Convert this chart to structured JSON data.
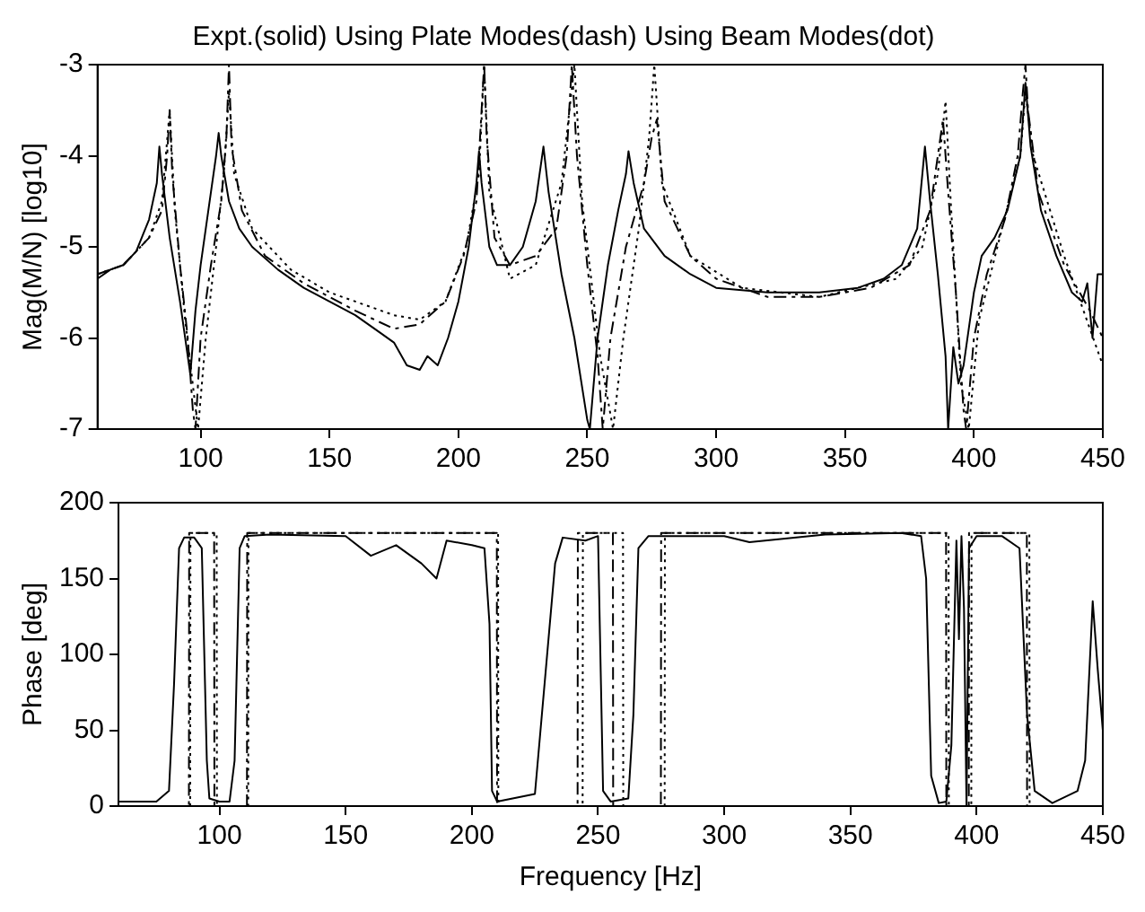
{
  "chart_data": [
    {
      "type": "line",
      "title": "Expt.(solid) Using Plate Modes(dash) Using Beam Modes(dot)",
      "ylabel": "Mag(M/N) [log10]",
      "xlim": [
        60,
        450
      ],
      "xticks": [
        100,
        150,
        200,
        250,
        300,
        350,
        400,
        450
      ],
      "ylim": [
        -7,
        -3
      ],
      "yticks": [
        -7,
        -6,
        -5,
        -4,
        -3
      ],
      "grid": false,
      "legend": false,
      "marker": "none",
      "series": [
        {
          "color": "#000000",
          "line_style": "solid",
          "x": [
            60,
            65,
            70,
            75,
            80,
            83,
            84,
            85,
            88,
            92,
            96,
            98,
            100,
            103,
            106,
            107,
            108,
            111,
            115,
            120,
            130,
            140,
            150,
            160,
            170,
            175,
            180,
            185,
            188,
            192,
            196,
            200,
            204,
            207,
            208,
            209,
            212,
            215,
            220,
            225,
            230,
            233,
            235,
            240,
            245,
            250,
            251,
            254,
            258,
            262,
            265,
            266,
            268,
            272,
            280,
            290,
            300,
            320,
            340,
            355,
            365,
            372,
            378,
            381,
            383,
            386,
            389,
            390,
            392,
            394,
            396,
            398,
            400,
            403,
            408,
            413,
            418,
            420,
            422,
            426,
            432,
            438,
            442,
            444,
            446,
            448,
            450
          ],
          "values": [
            -5.35,
            -5.25,
            -5.2,
            -5.05,
            -4.7,
            -4.3,
            -3.9,
            -4.2,
            -4.9,
            -5.6,
            -6.4,
            -5.7,
            -5.2,
            -4.6,
            -4.0,
            -3.75,
            -4.0,
            -4.5,
            -4.8,
            -5.0,
            -5.25,
            -5.45,
            -5.6,
            -5.75,
            -5.95,
            -6.05,
            -6.3,
            -6.35,
            -6.2,
            -6.3,
            -6.0,
            -5.6,
            -5.0,
            -4.3,
            -3.95,
            -4.3,
            -5.0,
            -5.2,
            -5.2,
            -5.0,
            -4.5,
            -3.9,
            -4.4,
            -5.3,
            -6.0,
            -6.9,
            -7.0,
            -6.0,
            -5.2,
            -4.6,
            -4.2,
            -3.95,
            -4.3,
            -4.8,
            -5.1,
            -5.3,
            -5.45,
            -5.5,
            -5.5,
            -5.45,
            -5.35,
            -5.2,
            -4.8,
            -3.9,
            -4.5,
            -5.3,
            -6.2,
            -7.0,
            -6.1,
            -6.5,
            -6.3,
            -5.9,
            -5.5,
            -5.1,
            -4.9,
            -4.6,
            -4.0,
            -3.2,
            -3.9,
            -4.6,
            -5.1,
            -5.5,
            -5.6,
            -5.4,
            -6.0,
            -5.3,
            -5.3
          ]
        },
        {
          "color": "#000000",
          "line_style": "dashed",
          "x": [
            60,
            70,
            80,
            85,
            87,
            88,
            89,
            92,
            95,
            97,
            98,
            100,
            104,
            108,
            110,
            111,
            112,
            116,
            125,
            140,
            160,
            175,
            185,
            195,
            202,
            207,
            209,
            210,
            211,
            214,
            220,
            230,
            238,
            242,
            244,
            246,
            250,
            254,
            256,
            259,
            265,
            272,
            275,
            277,
            280,
            290,
            300,
            320,
            340,
            360,
            375,
            383,
            386,
            388,
            390,
            393,
            396,
            397,
            400,
            405,
            412,
            417,
            419,
            420,
            421,
            425,
            435,
            445,
            450
          ],
          "values": [
            -5.3,
            -5.2,
            -4.9,
            -4.6,
            -4.0,
            -3.5,
            -4.2,
            -5.2,
            -6.0,
            -6.8,
            -7.0,
            -6.0,
            -5.2,
            -4.5,
            -3.8,
            -3.0,
            -3.9,
            -4.6,
            -5.1,
            -5.4,
            -5.7,
            -5.9,
            -5.85,
            -5.6,
            -5.1,
            -4.5,
            -3.5,
            -3.0,
            -3.8,
            -4.9,
            -5.2,
            -5.1,
            -4.8,
            -4.0,
            -3.0,
            -4.0,
            -5.2,
            -6.2,
            -7.0,
            -6.0,
            -5.0,
            -4.3,
            -3.8,
            -3.6,
            -4.5,
            -5.1,
            -5.35,
            -5.55,
            -5.55,
            -5.45,
            -5.2,
            -4.6,
            -4.0,
            -3.6,
            -4.4,
            -5.5,
            -6.8,
            -7.0,
            -6.0,
            -5.3,
            -4.7,
            -4.0,
            -3.3,
            -3.0,
            -3.5,
            -4.4,
            -5.2,
            -5.7,
            -6.0
          ]
        },
        {
          "color": "#000000",
          "line_style": "dotted",
          "x": [
            60,
            70,
            80,
            85,
            88,
            90,
            94,
            99,
            102,
            106,
            109,
            111,
            113,
            120,
            135,
            150,
            175,
            185,
            195,
            203,
            208,
            210,
            212,
            220,
            230,
            240,
            245,
            248,
            255,
            260,
            264,
            270,
            274,
            276,
            279,
            290,
            310,
            340,
            370,
            380,
            386,
            389,
            391,
            395,
            398,
            402,
            410,
            418,
            420,
            423,
            435,
            450
          ],
          "values": [
            -5.3,
            -5.2,
            -4.9,
            -4.5,
            -3.5,
            -4.6,
            -5.8,
            -7.0,
            -6.0,
            -5.0,
            -4.2,
            -3.3,
            -4.2,
            -4.8,
            -5.25,
            -5.5,
            -5.75,
            -5.8,
            -5.6,
            -5.0,
            -4.2,
            -3.0,
            -4.4,
            -5.35,
            -5.2,
            -4.3,
            -3.0,
            -4.5,
            -6.2,
            -7.0,
            -6.0,
            -4.8,
            -3.8,
            -3.0,
            -4.3,
            -5.1,
            -5.45,
            -5.55,
            -5.35,
            -5.0,
            -4.2,
            -3.4,
            -4.5,
            -6.5,
            -7.0,
            -5.8,
            -4.9,
            -4.0,
            -3.3,
            -4.0,
            -5.1,
            -6.3
          ]
        }
      ]
    },
    {
      "type": "line",
      "xlabel": "Frequency [Hz]",
      "ylabel": "Phase [deg]",
      "xlim": [
        60,
        450
      ],
      "xticks": [
        100,
        150,
        200,
        250,
        300,
        350,
        400,
        450
      ],
      "ylim": [
        0,
        200
      ],
      "yticks": [
        0,
        50,
        100,
        150,
        200
      ],
      "grid": false,
      "legend": false,
      "marker": "none",
      "series": [
        {
          "color": "#000000",
          "line_style": "solid",
          "x": [
            60,
            75,
            80,
            82,
            84,
            86,
            90,
            93,
            95,
            96,
            100,
            104,
            106,
            108,
            110,
            120,
            150,
            160,
            170,
            180,
            186,
            190,
            200,
            205,
            207,
            208,
            210,
            225,
            233,
            236,
            245,
            250,
            252,
            255,
            262,
            264,
            266,
            270,
            300,
            310,
            340,
            370,
            378,
            380,
            382,
            385,
            388,
            390,
            392,
            393,
            394,
            395,
            396,
            397,
            400,
            410,
            417,
            420,
            423,
            430,
            440,
            443,
            446,
            448,
            450
          ],
          "values": [
            3,
            3,
            10,
            80,
            170,
            177,
            177,
            170,
            30,
            5,
            3,
            3,
            30,
            170,
            178,
            179,
            178,
            165,
            172,
            160,
            150,
            175,
            172,
            170,
            120,
            10,
            3,
            8,
            160,
            177,
            175,
            178,
            10,
            3,
            5,
            60,
            170,
            178,
            178,
            174,
            179,
            180,
            178,
            150,
            20,
            2,
            3,
            40,
            175,
            110,
            178,
            130,
            0,
            170,
            178,
            178,
            170,
            60,
            10,
            2,
            10,
            30,
            135,
            90,
            50
          ]
        },
        {
          "color": "#000000",
          "line_style": "dashed",
          "x": [
            60,
            87.9,
            88,
            97.9,
            98,
            110.9,
            111,
            209.9,
            210,
            241.9,
            242,
            255.9,
            256,
            274.9,
            275,
            387.9,
            388,
            396.9,
            397,
            419.9,
            420,
            450
          ],
          "values": [
            0,
            0,
            180,
            180,
            0,
            0,
            180,
            180,
            0,
            0,
            180,
            180,
            0,
            0,
            180,
            180,
            0,
            0,
            180,
            180,
            0,
            0
          ]
        },
        {
          "color": "#000000",
          "line_style": "dotted",
          "x": [
            60,
            88.4,
            88.5,
            98.9,
            99,
            111.4,
            111.5,
            210.4,
            210.5,
            243.9,
            244,
            259.9,
            260,
            276.4,
            276.5,
            388.9,
            389,
            397.9,
            398,
            420.9,
            421,
            450
          ],
          "values": [
            0,
            0,
            180,
            180,
            0,
            0,
            180,
            180,
            0,
            0,
            180,
            180,
            0,
            0,
            180,
            180,
            0,
            0,
            180,
            180,
            0,
            0
          ]
        }
      ]
    }
  ]
}
